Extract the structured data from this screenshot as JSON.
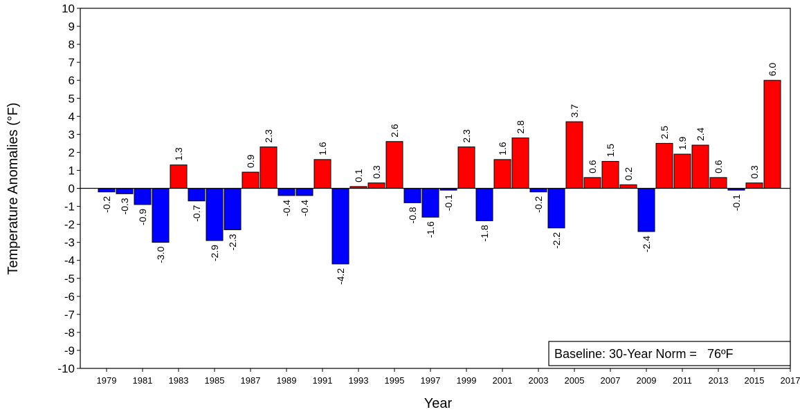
{
  "chart_data": {
    "type": "bar",
    "title": "",
    "xlabel": "Year",
    "ylabel": "Temperature Anomalies (°F)",
    "ylim": [
      -10,
      10
    ],
    "yticks": [
      -10,
      -9,
      -8,
      -7,
      -6,
      -5,
      -4,
      -3,
      -2,
      -1,
      0,
      1,
      2,
      3,
      4,
      5,
      6,
      7,
      8,
      9,
      10
    ],
    "xticks": [
      "1979",
      "1981",
      "1983",
      "1985",
      "1987",
      "1989",
      "1991",
      "1993",
      "1995",
      "1997",
      "1999",
      "2001",
      "2003",
      "2005",
      "2007",
      "2009",
      "2011",
      "2013",
      "2015",
      "2017"
    ],
    "categories": [
      "1979",
      "1980",
      "1981",
      "1982",
      "1983",
      "1984",
      "1985",
      "1986",
      "1987",
      "1988",
      "1989",
      "1990",
      "1991",
      "1992",
      "1993",
      "1994",
      "1995",
      "1996",
      "1997",
      "1998",
      "1999",
      "2000",
      "2001",
      "2002",
      "2003",
      "2004",
      "2005",
      "2006",
      "2007",
      "2008",
      "2009",
      "2010",
      "2011",
      "2012",
      "2013",
      "2014",
      "2015",
      "2016"
    ],
    "values": [
      -0.2,
      -0.3,
      -0.9,
      -3.0,
      1.3,
      -0.7,
      -2.9,
      -2.3,
      0.9,
      2.3,
      -0.4,
      -0.4,
      1.6,
      -4.2,
      0.1,
      0.3,
      2.6,
      -0.8,
      -1.6,
      -0.1,
      2.3,
      -1.8,
      1.6,
      2.8,
      -0.2,
      -2.2,
      3.7,
      0.6,
      1.5,
      0.2,
      -2.4,
      2.5,
      1.9,
      2.4,
      0.6,
      -0.1,
      0.3,
      6.0
    ],
    "labels": [
      "-0.2",
      "-0.3",
      "-0.9",
      "-3.0",
      "1.3",
      "-0.7",
      "-2.9",
      "-2.3",
      "0.9",
      "2.3",
      "-0.4",
      "-0.4",
      "1.6",
      "-4.2",
      "0.1",
      "0.3",
      "2.6",
      "-0.8",
      "-1.6",
      "-0.1",
      "2.3",
      "-1.8",
      "1.6",
      "2.8",
      "-0.2",
      "-2.2",
      "3.7",
      "0.6",
      "1.5",
      "0.2",
      "-2.4",
      "2.5",
      "1.9",
      "2.4",
      "0.6",
      "-0.1",
      "0.3",
      "6.0"
    ],
    "positive_color": "#ff0000",
    "negative_color": "#0000ff",
    "baseline_note": "Baseline: 30-Year Norm =   76ºF",
    "grid": false,
    "legend": "none"
  }
}
